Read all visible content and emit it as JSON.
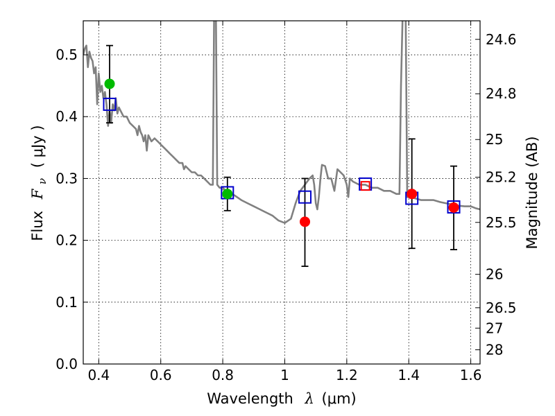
{
  "chart_data": {
    "type": "scatter",
    "xlabel": "Wavelength",
    "xlabel_symbol": "λ",
    "xlabel_unit": "(μm)",
    "ylabel": "Flux",
    "ylabel_symbol": "F",
    "ylabel_subscript": "ν",
    "ylabel_unit": "( μJy )",
    "y2label": "Magnitude (AB)",
    "xlim": [
      0.35,
      1.63
    ],
    "ylim": [
      0.0,
      0.555
    ],
    "grid": true,
    "x_ticks": [
      0.4,
      0.6,
      0.8,
      1.0,
      1.2,
      1.4,
      1.6
    ],
    "x_tick_labels": [
      "0.4",
      "0.6",
      "0.8",
      "1",
      "1.2",
      "1.4",
      "1.6"
    ],
    "y_ticks": [
      0.0,
      0.1,
      0.2,
      0.3,
      0.4,
      0.5
    ],
    "y_tick_labels": [
      "0.0",
      "0.1",
      "0.2",
      "0.3",
      "0.4",
      "0.5"
    ],
    "y2_ticks": [
      {
        "label": "24.6",
        "flux": 0.525
      },
      {
        "label": "24.8",
        "flux": 0.437
      },
      {
        "label": "25",
        "flux": 0.363
      },
      {
        "label": "25.2",
        "flux": 0.302
      },
      {
        "label": "25.5",
        "flux": 0.229
      },
      {
        "label": "26",
        "flux": 0.145
      },
      {
        "label": "26.5",
        "flux": 0.091
      },
      {
        "label": "27",
        "flux": 0.058
      },
      {
        "label": "28",
        "flux": 0.023
      }
    ],
    "series": [
      {
        "kind": "line",
        "color": "#808080",
        "points": [
          [
            0.35,
            0.5
          ],
          [
            0.355,
            0.51
          ],
          [
            0.36,
            0.515
          ],
          [
            0.365,
            0.48
          ],
          [
            0.37,
            0.505
          ],
          [
            0.375,
            0.495
          ],
          [
            0.38,
            0.49
          ],
          [
            0.385,
            0.47
          ],
          [
            0.39,
            0.48
          ],
          [
            0.395,
            0.42
          ],
          [
            0.4,
            0.47
          ],
          [
            0.405,
            0.44
          ],
          [
            0.41,
            0.45
          ],
          [
            0.415,
            0.43
          ],
          [
            0.42,
            0.44
          ],
          [
            0.425,
            0.42
          ],
          [
            0.43,
            0.385
          ],
          [
            0.435,
            0.41
          ],
          [
            0.44,
            0.39
          ],
          [
            0.445,
            0.42
          ],
          [
            0.45,
            0.41
          ],
          [
            0.455,
            0.43
          ],
          [
            0.46,
            0.405
          ],
          [
            0.465,
            0.415
          ],
          [
            0.47,
            0.41
          ],
          [
            0.48,
            0.4
          ],
          [
            0.49,
            0.4
          ],
          [
            0.5,
            0.39
          ],
          [
            0.51,
            0.385
          ],
          [
            0.52,
            0.38
          ],
          [
            0.525,
            0.37
          ],
          [
            0.53,
            0.385
          ],
          [
            0.535,
            0.375
          ],
          [
            0.54,
            0.37
          ],
          [
            0.545,
            0.36
          ],
          [
            0.55,
            0.37
          ],
          [
            0.555,
            0.345
          ],
          [
            0.56,
            0.37
          ],
          [
            0.565,
            0.365
          ],
          [
            0.57,
            0.36
          ],
          [
            0.58,
            0.365
          ],
          [
            0.59,
            0.36
          ],
          [
            0.6,
            0.355
          ],
          [
            0.61,
            0.35
          ],
          [
            0.62,
            0.345
          ],
          [
            0.63,
            0.34
          ],
          [
            0.64,
            0.335
          ],
          [
            0.65,
            0.33
          ],
          [
            0.66,
            0.325
          ],
          [
            0.67,
            0.325
          ],
          [
            0.675,
            0.315
          ],
          [
            0.68,
            0.32
          ],
          [
            0.69,
            0.315
          ],
          [
            0.7,
            0.31
          ],
          [
            0.71,
            0.31
          ],
          [
            0.72,
            0.305
          ],
          [
            0.73,
            0.305
          ],
          [
            0.74,
            0.3
          ],
          [
            0.75,
            0.295
          ],
          [
            0.76,
            0.29
          ],
          [
            0.768,
            0.29
          ],
          [
            0.772,
            0.56
          ],
          [
            0.778,
            0.56
          ],
          [
            0.782,
            0.29
          ],
          [
            0.79,
            0.285
          ],
          [
            0.8,
            0.285
          ],
          [
            0.81,
            0.28
          ],
          [
            0.82,
            0.278
          ],
          [
            0.84,
            0.272
          ],
          [
            0.86,
            0.265
          ],
          [
            0.88,
            0.26
          ],
          [
            0.9,
            0.255
          ],
          [
            0.92,
            0.25
          ],
          [
            0.94,
            0.245
          ],
          [
            0.96,
            0.24
          ],
          [
            0.98,
            0.232
          ],
          [
            1.0,
            0.228
          ],
          [
            1.02,
            0.235
          ],
          [
            1.035,
            0.26
          ],
          [
            1.05,
            0.28
          ],
          [
            1.065,
            0.29
          ],
          [
            1.08,
            0.3
          ],
          [
            1.09,
            0.305
          ],
          [
            1.095,
            0.29
          ],
          [
            1.1,
            0.26
          ],
          [
            1.105,
            0.25
          ],
          [
            1.11,
            0.27
          ],
          [
            1.115,
            0.3
          ],
          [
            1.12,
            0.322
          ],
          [
            1.13,
            0.32
          ],
          [
            1.14,
            0.3
          ],
          [
            1.15,
            0.3
          ],
          [
            1.16,
            0.28
          ],
          [
            1.17,
            0.315
          ],
          [
            1.18,
            0.31
          ],
          [
            1.19,
            0.305
          ],
          [
            1.2,
            0.29
          ],
          [
            1.205,
            0.27
          ],
          [
            1.21,
            0.3
          ],
          [
            1.22,
            0.295
          ],
          [
            1.24,
            0.29
          ],
          [
            1.26,
            0.29
          ],
          [
            1.28,
            0.285
          ],
          [
            1.3,
            0.285
          ],
          [
            1.32,
            0.28
          ],
          [
            1.34,
            0.28
          ],
          [
            1.36,
            0.275
          ],
          [
            1.37,
            0.275
          ],
          [
            1.375,
            0.45
          ],
          [
            1.38,
            0.56
          ],
          [
            1.39,
            0.56
          ],
          [
            1.395,
            0.27
          ],
          [
            1.4,
            0.27
          ],
          [
            1.42,
            0.268
          ],
          [
            1.44,
            0.265
          ],
          [
            1.46,
            0.265
          ],
          [
            1.48,
            0.265
          ],
          [
            1.5,
            0.262
          ],
          [
            1.52,
            0.26
          ],
          [
            1.54,
            0.258
          ],
          [
            1.56,
            0.256
          ],
          [
            1.58,
            0.255
          ],
          [
            1.6,
            0.255
          ],
          [
            1.615,
            0.252
          ],
          [
            1.63,
            0.25
          ]
        ]
      },
      {
        "kind": "errorbar",
        "color": "#000000",
        "points": [
          {
            "x": 0.435,
            "low": 0.39,
            "high": 0.515
          },
          {
            "x": 0.815,
            "low": 0.248,
            "high": 0.302
          },
          {
            "x": 1.065,
            "low": 0.158,
            "high": 0.3
          },
          {
            "x": 1.41,
            "low": 0.187,
            "high": 0.364
          },
          {
            "x": 1.545,
            "low": 0.185,
            "high": 0.32
          }
        ]
      },
      {
        "kind": "square",
        "color": "#0000cc",
        "points": [
          {
            "x": 0.435,
            "y": 0.42
          },
          {
            "x": 0.815,
            "y": 0.277
          },
          {
            "x": 1.065,
            "y": 0.27
          },
          {
            "x": 1.26,
            "y": 0.291
          },
          {
            "x": 1.41,
            "y": 0.268
          },
          {
            "x": 1.545,
            "y": 0.254
          }
        ]
      },
      {
        "kind": "square",
        "color": "#ff0000",
        "points": [
          {
            "x": 1.26,
            "y": 0.288
          }
        ]
      },
      {
        "kind": "circle",
        "color": "#00bb00",
        "points": [
          {
            "x": 0.435,
            "y": 0.453
          },
          {
            "x": 0.815,
            "y": 0.275
          }
        ]
      },
      {
        "kind": "circle",
        "color": "#ff0000",
        "points": [
          {
            "x": 1.065,
            "y": 0.23
          },
          {
            "x": 1.41,
            "y": 0.275
          },
          {
            "x": 1.545,
            "y": 0.253
          }
        ]
      }
    ]
  }
}
